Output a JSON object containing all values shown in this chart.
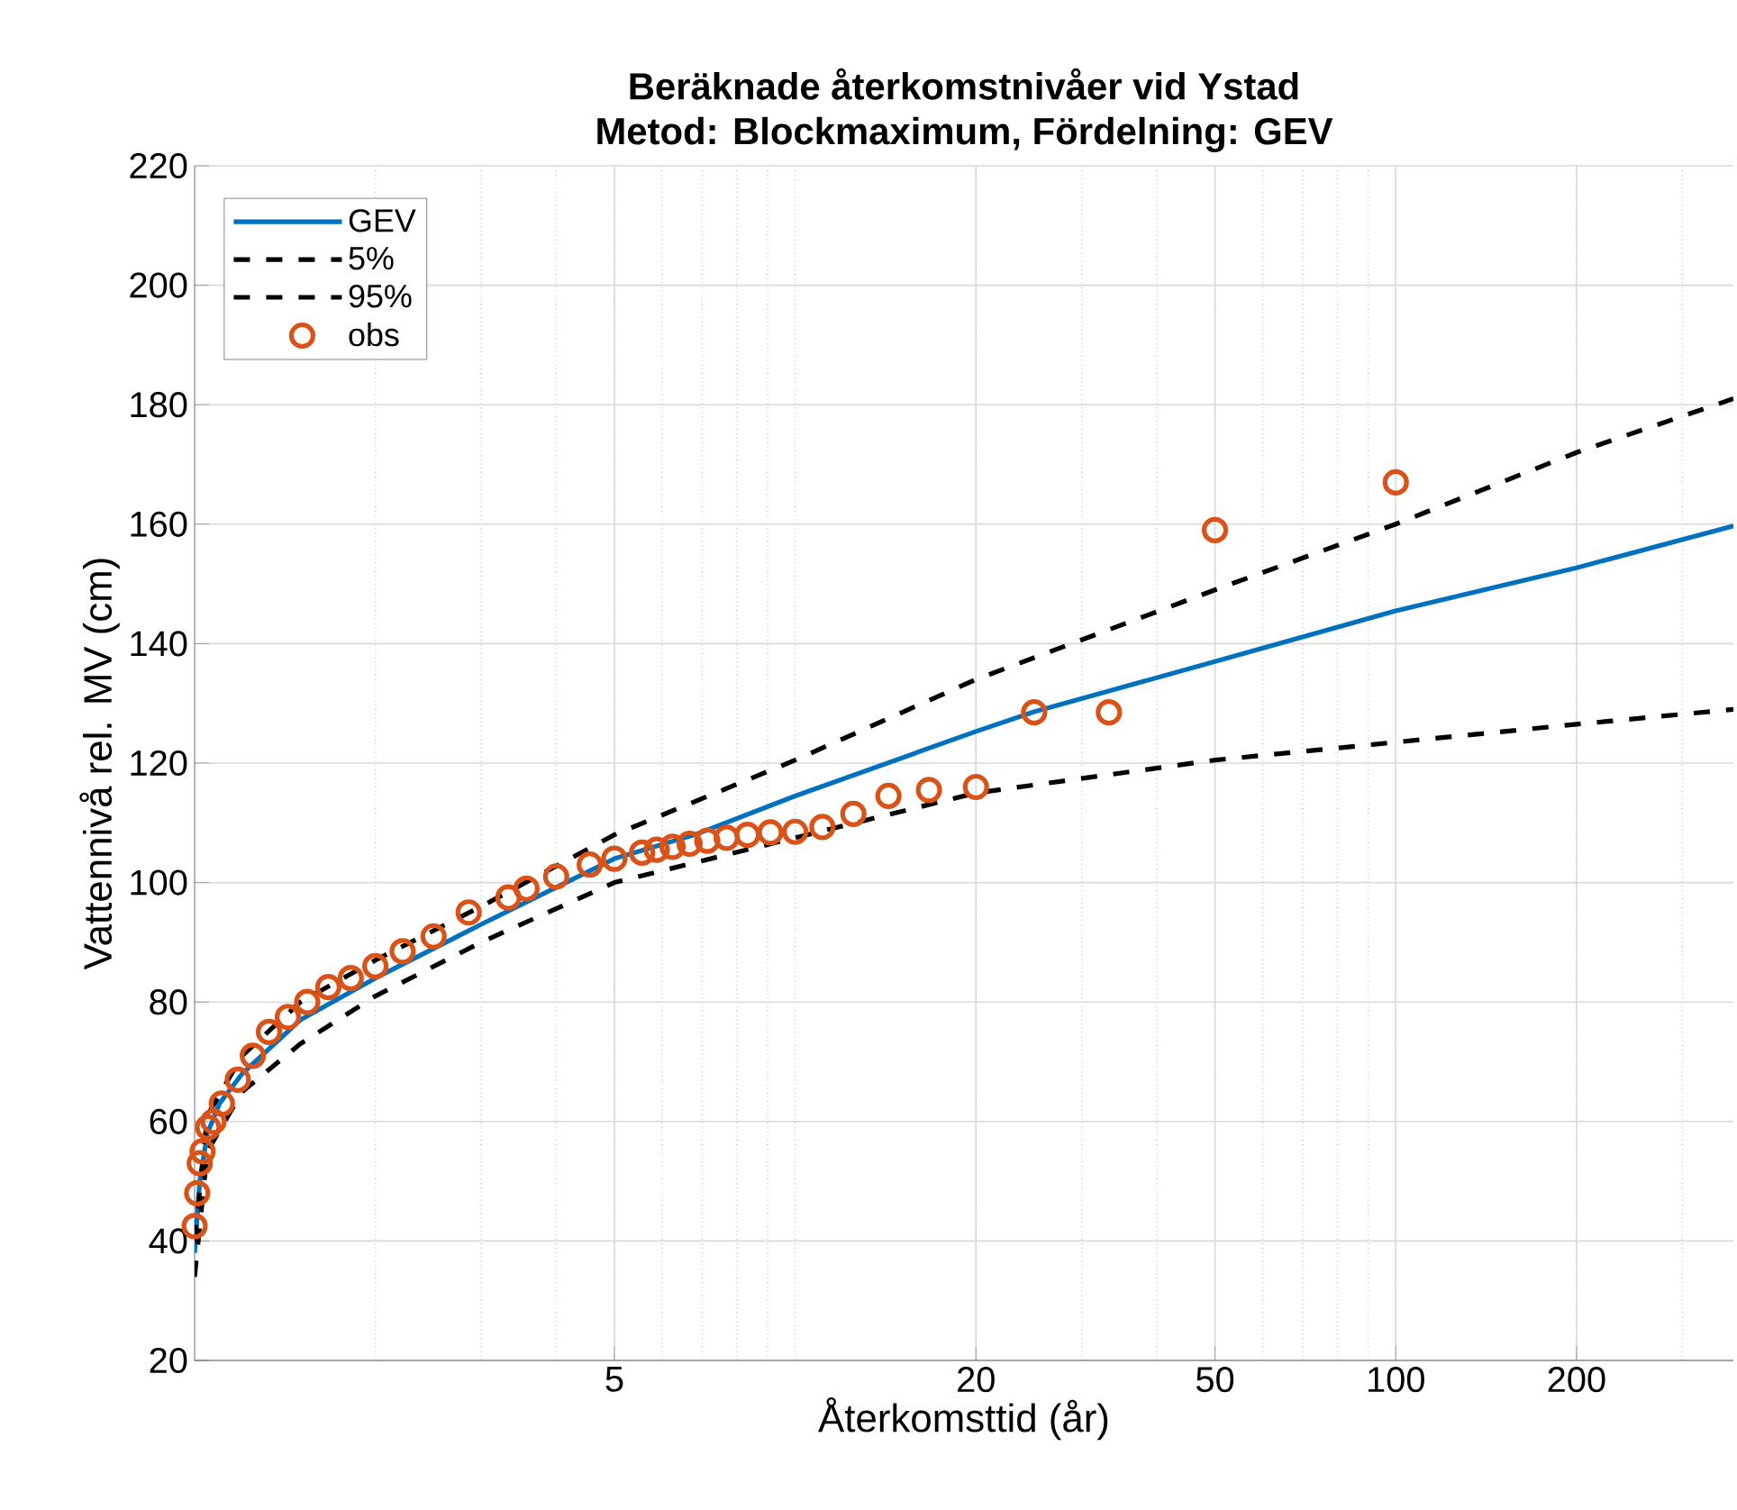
{
  "chart_data": {
    "type": "line",
    "title": "Beräknade återkomstnivåer vid Ystad",
    "subtitle": "Metod: Blockmaximum, Fördelning: GEV",
    "xlabel": "Återkomsttid (år)",
    "ylabel": "Vattennivå rel. MV (cm)",
    "log": "x",
    "xlim": [
      1,
      365
    ],
    "xticks": [
      5,
      20,
      50,
      100,
      200
    ],
    "ylim": [
      20,
      220
    ],
    "yticks": [
      20,
      40,
      60,
      80,
      100,
      120,
      140,
      160,
      180,
      200,
      220
    ],
    "grid": true,
    "legend": "top left",
    "series": [
      {
        "name": "GEV",
        "line_style": "solid",
        "color": "#0072bd",
        "x": [
          1,
          1.02,
          1.05,
          1.1,
          1.2,
          1.5,
          2,
          3,
          5,
          6.8,
          10,
          20,
          25,
          50,
          100,
          200,
          365
        ],
        "values": [
          38,
          50,
          58,
          63,
          68,
          77,
          84,
          93,
          104,
          108,
          114.5,
          125.3,
          128.6,
          137,
          145.5,
          152.7,
          159.7
        ]
      },
      {
        "name": "5%",
        "line_style": "dashed",
        "color": "#000000",
        "x": [
          1,
          1.05,
          1.2,
          1.5,
          2,
          3,
          5,
          10,
          20,
          50,
          100,
          200,
          365
        ],
        "values": [
          34,
          55,
          65,
          73,
          81,
          90,
          100,
          107.5,
          115,
          120.5,
          123.5,
          126.5,
          129
        ]
      },
      {
        "name": "95%",
        "line_style": "dashed",
        "color": "#000000",
        "x": [
          1,
          1.05,
          1.2,
          1.5,
          2,
          3,
          5,
          10,
          20,
          50,
          100,
          200,
          365
        ],
        "values": [
          40,
          61,
          71,
          80,
          87,
          96,
          108,
          120.5,
          134,
          149,
          160,
          172,
          181
        ]
      },
      {
        "name": "obs",
        "type": "scatter",
        "marker": "circle",
        "color": "#d95319",
        "x": [
          100,
          50,
          33.3,
          25,
          20,
          16.7,
          14.3,
          12.5,
          11.1,
          10,
          9.09,
          8.33,
          7.69,
          7.14,
          6.67,
          6.25,
          5.88,
          5.56,
          5,
          4.55,
          4,
          3.57,
          3.33,
          2.86,
          2.5,
          2.22,
          2,
          1.82,
          1.67,
          1.54,
          1.43,
          1.33,
          1.25,
          1.18,
          1.11,
          1.075,
          1.053,
          1.031,
          1.02,
          1.01,
          1
        ],
        "values": [
          167,
          159,
          128.5,
          128.5,
          116,
          115.5,
          114.5,
          111.5,
          109.3,
          108.5,
          108.4,
          108,
          107.5,
          107,
          106.5,
          106,
          105.5,
          105,
          104,
          103,
          101,
          99,
          97.5,
          95,
          91,
          88.5,
          86,
          84,
          82.5,
          80,
          77.5,
          75,
          71,
          67,
          63,
          60,
          59,
          55,
          53,
          48,
          42.5
        ]
      }
    ]
  }
}
